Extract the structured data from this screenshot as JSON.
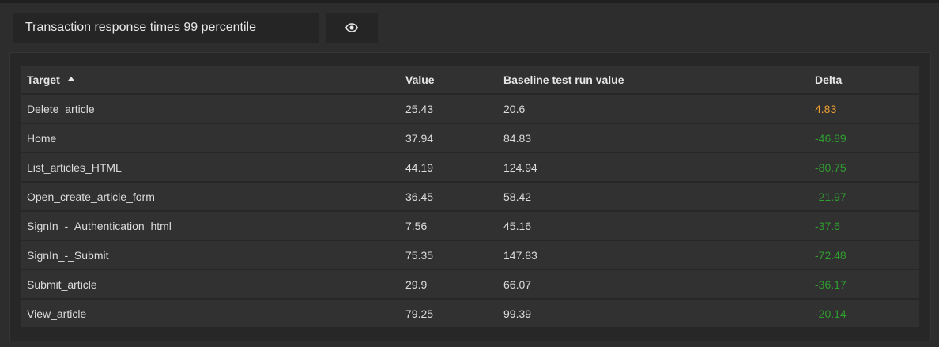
{
  "panel": {
    "title": "Transaction response times 99 percentile",
    "view_icon": "eye-icon"
  },
  "table": {
    "columns": [
      "Target",
      "Value",
      "Baseline test run value",
      "Delta"
    ],
    "sort": {
      "column": "Target",
      "direction": "ascending"
    },
    "rows": [
      {
        "target": "Delete_article",
        "value": "25.43",
        "baseline": "20.6",
        "delta": "4.83",
        "delta_color": "#f0a030"
      },
      {
        "target": "Home",
        "value": "37.94",
        "baseline": "84.83",
        "delta": "-46.89",
        "delta_color": "#2f9e2f"
      },
      {
        "target": "List_articles_HTML",
        "value": "44.19",
        "baseline": "124.94",
        "delta": "-80.75",
        "delta_color": "#2f9e2f"
      },
      {
        "target": "Open_create_article_form",
        "value": "36.45",
        "baseline": "58.42",
        "delta": "-21.97",
        "delta_color": "#2f9e2f"
      },
      {
        "target": "SignIn_-_Authentication_html",
        "value": "7.56",
        "baseline": "45.16",
        "delta": "-37.6",
        "delta_color": "#2f9e2f"
      },
      {
        "target": "SignIn_-_Submit",
        "value": "75.35",
        "baseline": "147.83",
        "delta": "-72.48",
        "delta_color": "#2f9e2f"
      },
      {
        "target": "Submit_article",
        "value": "29.9",
        "baseline": "66.07",
        "delta": "-36.17",
        "delta_color": "#2f9e2f"
      },
      {
        "target": "View_article",
        "value": "79.25",
        "baseline": "99.39",
        "delta": "-20.14",
        "delta_color": "#2f9e2f"
      }
    ]
  }
}
